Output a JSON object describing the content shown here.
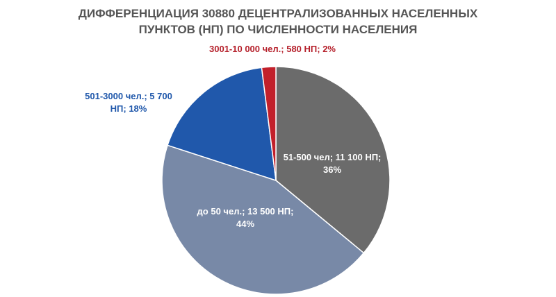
{
  "chart_data": {
    "type": "pie",
    "title": "ДИФФЕРЕНЦИАЦИЯ 30880 ДЕЦЕНТРАЛИЗОВАННЫХ НАСЕЛЕННЫХ ПУНКТОВ (НП) ПО ЧИСЛЕННОСТИ НАСЕЛЕНИЯ",
    "categories": [
      "51-500 чел; 11 100 НП;",
      "до 50 чел.; 13 500 НП;",
      "501-3000 чел.; 5 700 НП;",
      "3001-10 000 чел.; 580 НП;"
    ],
    "values": [
      36,
      44,
      18,
      2
    ],
    "value_labels": [
      "36%",
      "44%",
      "18%",
      "2%"
    ],
    "colors": [
      "#6b6b6b",
      "#7889a7",
      "#2058ab",
      "#c2202b"
    ],
    "label_colors": [
      "#ffffff",
      "#ffffff",
      "#2058ab",
      "#b51f2a"
    ]
  }
}
